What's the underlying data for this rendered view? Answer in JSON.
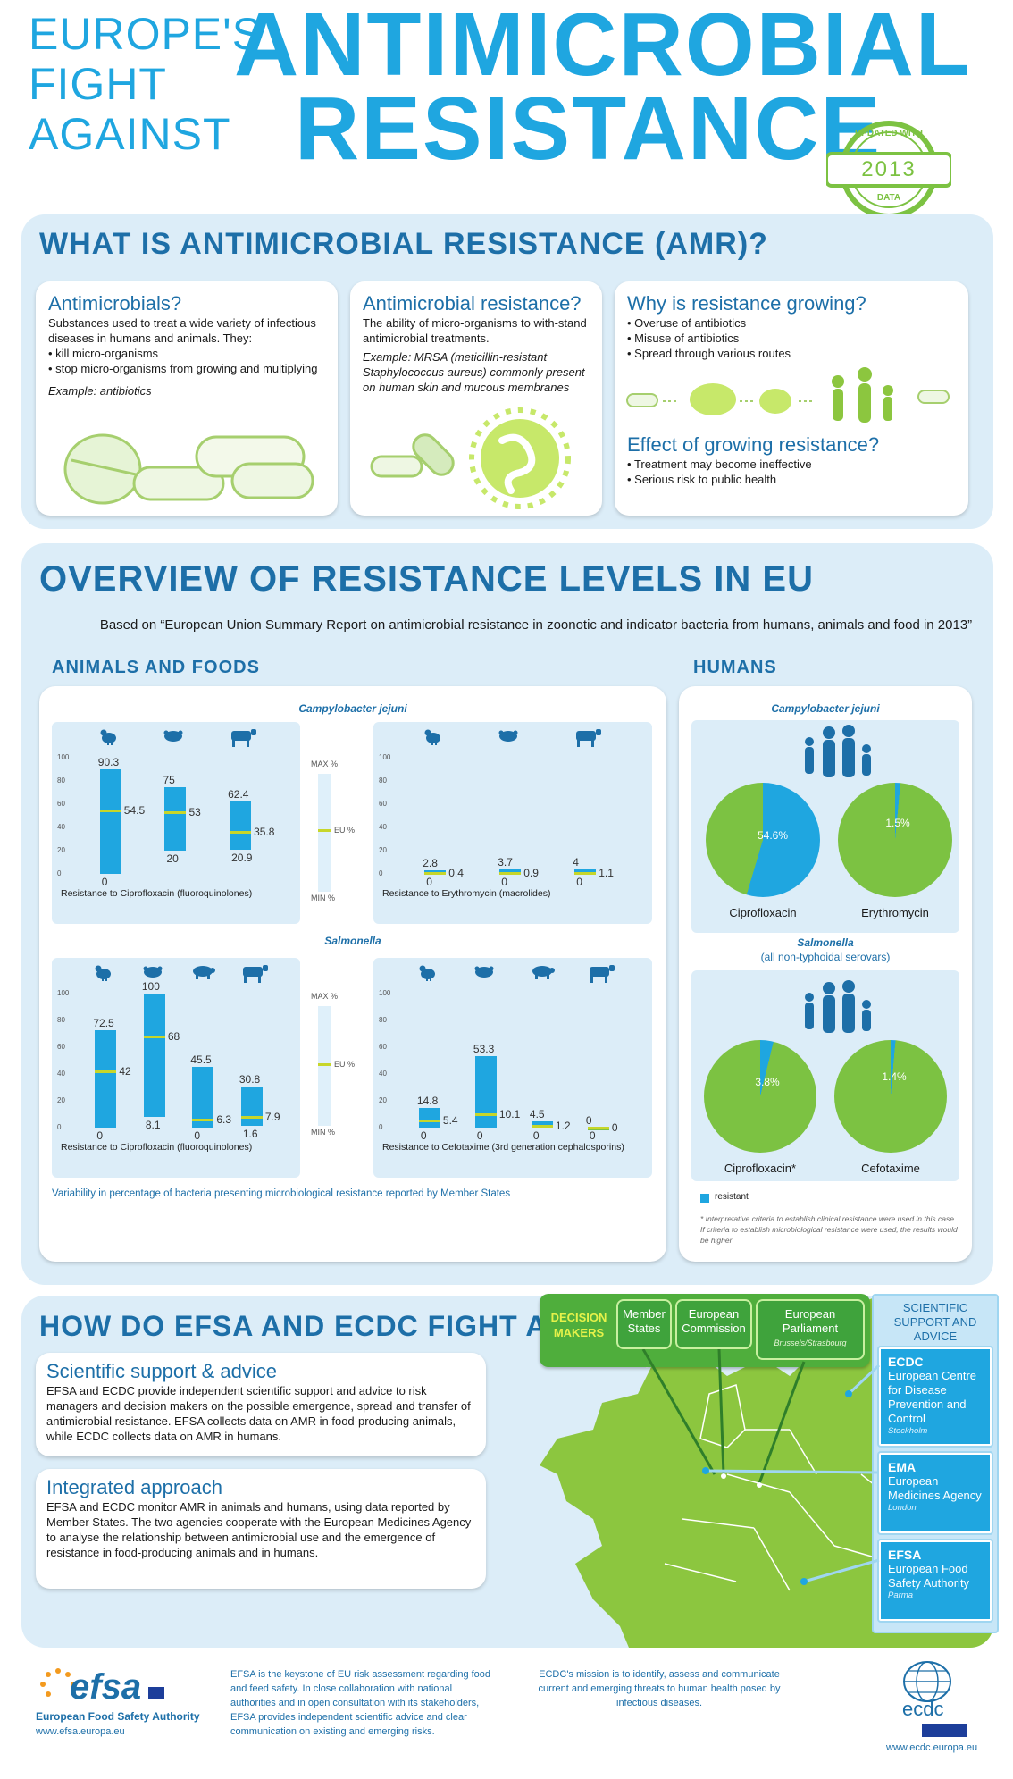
{
  "header": {
    "kicker": [
      "EUROPE'S",
      "FIGHT",
      "AGAINST"
    ],
    "title_line1": "ANTIMICROBIAL",
    "title_line2": "RESISTANCE",
    "stamp": {
      "top": "UPDATED WITH",
      "year": "2013",
      "bottom": "DATA"
    }
  },
  "what": {
    "heading": "WHAT IS ANTIMICROBIAL RESISTANCE (AMR)?",
    "card1": {
      "title": "Antimicrobials?",
      "text": "Substances used to treat a wide variety of infectious diseases in humans and animals. They:",
      "bullets": [
        "kill micro-organisms",
        "stop micro-organisms from growing and multiplying"
      ],
      "example": "Example: antibiotics"
    },
    "card2": {
      "title": "Antimicrobial resistance?",
      "text": "The ability of micro-organisms to with-stand antimicrobial treatments.",
      "example": "Example: MRSA (meticillin-resistant Staphylococcus aureus) commonly present on human skin and mucous membranes"
    },
    "card3": {
      "title": "Why is resistance growing?",
      "bullets": [
        "Overuse of antibiotics",
        "Misuse of antibiotics",
        "Spread through various routes"
      ],
      "title2": "Effect of growing resistance?",
      "bullets2": [
        "Treatment may become ineffective",
        "Serious risk to public health"
      ]
    }
  },
  "overview": {
    "heading": "OVERVIEW OF RESISTANCE LEVELS IN EU",
    "subtitle": "Based on “European Union Summary Report on antimicrobial resistance in zoonotic and indicator bacteria from humans, animals and food in 2013”",
    "animals_title": "ANIMALS AND FOODS",
    "humans_title": "HUMANS",
    "campylobacter": "Campylobacter jejuni",
    "salmonella": "Salmonella",
    "salmonella_sub": "(all non-typhoidal serovars)",
    "legend": {
      "max": "MAX %",
      "eu": "EU %",
      "min": "MIN %"
    },
    "variability_note": "Variability in percentage of bacteria presenting microbiological resistance reported by Member States",
    "resistant_label": "resistant",
    "footnote": "* Interpretative criteria to establish clinical resistance were used in this case. If criteria to establish microbiological resistance were used, the results would be higher",
    "y_ticks": [
      "100",
      "80",
      "60",
      "40",
      "20",
      "0"
    ]
  },
  "chart_data": [
    {
      "type": "range-bar",
      "title": "Resistance to Ciprofloxacin (fluoroquinolones)",
      "group": "Campylobacter jejuni",
      "categories": [
        "chicken-icon",
        "broiler-meat-icon",
        "cow-icon"
      ],
      "max": [
        90.3,
        75.0,
        62.4
      ],
      "eu": [
        54.5,
        53.0,
        35.8
      ],
      "min": [
        0,
        20.0,
        20.9
      ],
      "ylim": [
        0,
        100
      ]
    },
    {
      "type": "range-bar",
      "title": "Resistance to Erythromycin (macrolides)",
      "group": "Campylobacter jejuni",
      "categories": [
        "chicken-icon",
        "broiler-meat-icon",
        "cow-icon"
      ],
      "max": [
        2.8,
        3.7,
        4.0
      ],
      "eu": [
        0.4,
        0.9,
        1.1
      ],
      "min": [
        0,
        0,
        0
      ],
      "ylim": [
        0,
        100
      ]
    },
    {
      "type": "range-bar",
      "title": "Resistance to Ciprofloxacin (fluoroquinolones)",
      "group": "Salmonella",
      "categories": [
        "chicken-icon",
        "broiler-meat-icon",
        "pig-icon",
        "cow-icon"
      ],
      "max": [
        72.5,
        100,
        45.5,
        30.8
      ],
      "eu": [
        42.0,
        68.0,
        6.3,
        7.9
      ],
      "min": [
        0,
        8.1,
        0,
        1.6
      ],
      "ylim": [
        0,
        100
      ]
    },
    {
      "type": "range-bar",
      "title": "Resistance to Cefotaxime (3rd generation cephalosporins)",
      "group": "Salmonella",
      "categories": [
        "chicken-icon",
        "broiler-meat-icon",
        "pig-icon",
        "cow-icon"
      ],
      "max": [
        14.8,
        53.3,
        4.5,
        0
      ],
      "eu": [
        5.4,
        10.1,
        1.2,
        0
      ],
      "min": [
        0,
        0,
        0,
        0
      ],
      "ylim": [
        0,
        100
      ]
    },
    {
      "type": "pie",
      "group": "Campylobacter jejuni",
      "slices": [
        {
          "label": "Ciprofloxacin",
          "resistant": 54.6,
          "text": "54.6%"
        },
        {
          "label": "Erythromycin",
          "resistant": 1.5,
          "text": "1.5%"
        }
      ]
    },
    {
      "type": "pie",
      "group": "Salmonella",
      "slices": [
        {
          "label": "Ciprofloxacin*",
          "resistant": 3.8,
          "text": "3.8%"
        },
        {
          "label": "Cefotaxime",
          "resistant": 1.4,
          "text": "1.4%"
        }
      ]
    }
  ],
  "fight": {
    "heading": "HOW DO EFSA AND ECDC FIGHT AMR?",
    "card1": {
      "title": "Scientific support & advice",
      "text": "EFSA and ECDC provide independent scientific support and advice to risk managers and decision makers on the possible emergence, spread and transfer of antimicrobial resistance. EFSA collects data on AMR in food-producing animals, while ECDC collects data on AMR in humans."
    },
    "card2": {
      "title": "Integrated approach",
      "text": "EFSA and ECDC monitor AMR in animals and humans, using data reported by Member States. The two agencies cooperate with the European Medicines Agency to analyse the relationship between antimicrobial use and the emergence of resistance in food-producing animals and in humans."
    },
    "decision_makers": {
      "label": "DECISION MAKERS",
      "member_states": "Member States",
      "commission": "European Commission",
      "parliament": "European Parliament",
      "parliament_city": "Brussels/Strasbourg"
    },
    "support": {
      "title": "SCIENTIFIC SUPPORT AND ADVICE",
      "agencies": [
        {
          "abbr": "ECDC",
          "name": "European Centre for Disease Prevention and Control",
          "city": "Stockholm"
        },
        {
          "abbr": "EMA",
          "name": "European Medicines Agency",
          "city": "London"
        },
        {
          "abbr": "EFSA",
          "name": "European Food Safety Authority",
          "city": "Parma"
        }
      ]
    }
  },
  "footer": {
    "efsa_logo": "efsa",
    "efsa_name": "European Food Safety Authority",
    "efsa_url": "www.efsa.europa.eu",
    "efsa_text": "EFSA is the keystone of EU risk assessment regarding food and feed safety. In close collaboration with national authorities and in open consultation with its stakeholders, EFSA provides independent scientific advice and clear communication on existing and emerging risks.",
    "ecdc_text": "ECDC's mission is to identify, assess and communicate current and emerging threats to human health posed by infectious diseases.",
    "ecdc_logo": "ecdc",
    "ecdc_url": "www.ecdc.europa.eu"
  },
  "colors": {
    "blue": "#1fa6e0",
    "navy": "#1d6fa8",
    "green": "#7cc242",
    "lime": "#c7d62a",
    "panel": "#dcedf8"
  }
}
